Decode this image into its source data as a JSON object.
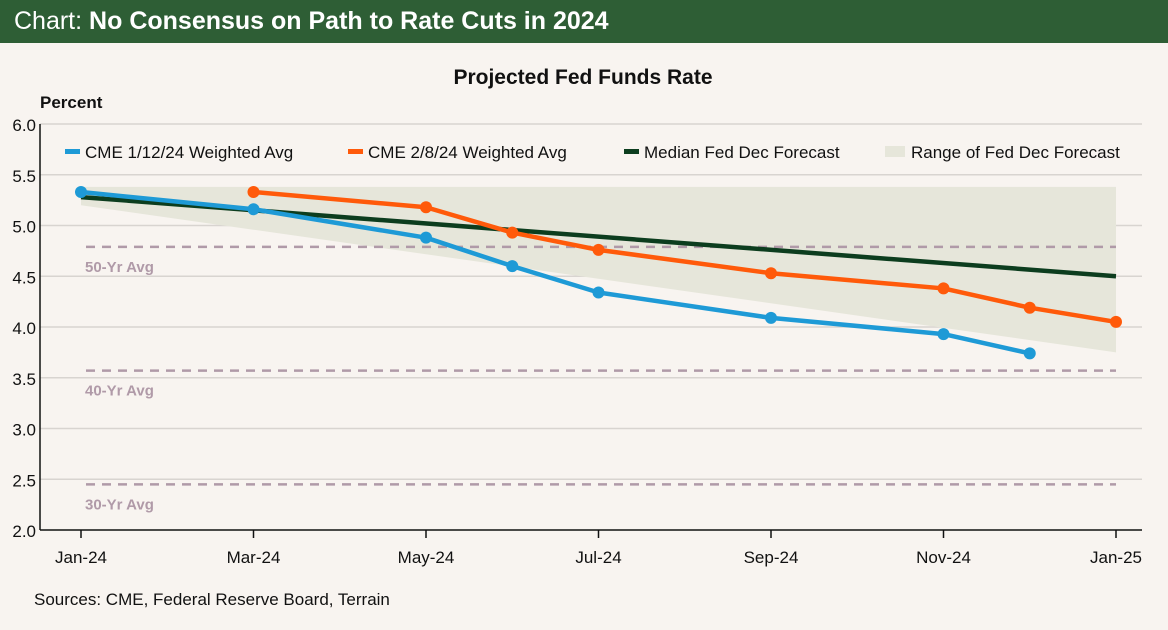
{
  "header": {
    "prefix": "Chart:",
    "title": "No Consensus on Path to Rate Cuts in 2024"
  },
  "source": "Sources: CME, Federal Reserve Board, Terrain",
  "chart_data": {
    "type": "line",
    "title": "Projected Fed Funds Rate",
    "ylabel": "Percent",
    "ylim": [
      2.0,
      6.0
    ],
    "yticks": [
      "2.0",
      "2.5",
      "3.0",
      "3.5",
      "4.0",
      "4.5",
      "5.0",
      "5.5",
      "6.0"
    ],
    "xticks": [
      "Jan-24",
      "Mar-24",
      "May-24",
      "Jul-24",
      "Sep-24",
      "Nov-24",
      "Jan-25"
    ],
    "grid": true,
    "legend": "top",
    "series": [
      {
        "name": "CME 1/12/24 Weighted Avg",
        "color": "#1e9ad6",
        "x": [
          "2024-01",
          "2024-03",
          "2024-05",
          "2024-06",
          "2024-07",
          "2024-09",
          "2024-11",
          "2024-12"
        ],
        "y": [
          5.33,
          5.16,
          4.88,
          4.6,
          4.34,
          4.09,
          3.93,
          3.74
        ]
      },
      {
        "name": "CME 2/8/24 Weighted Avg",
        "color": "#ff5a0a",
        "x": [
          "2024-03",
          "2024-05",
          "2024-06",
          "2024-07",
          "2024-09",
          "2024-11",
          "2024-12",
          "2025-01"
        ],
        "y": [
          5.33,
          5.18,
          4.93,
          4.76,
          4.53,
          4.38,
          4.19,
          4.05
        ]
      },
      {
        "name": "Median Fed Dec Forecast",
        "color": "#0c3d1e",
        "x": [
          "2024-01",
          "2025-01"
        ],
        "y": [
          5.28,
          4.5
        ]
      },
      {
        "name": "Range of Fed Dec Forecast",
        "color": "#e6e6da",
        "type": "area",
        "x": [
          "2024-01",
          "2025-01"
        ],
        "upper": [
          5.38,
          5.38
        ],
        "lower": [
          5.2,
          3.75
        ]
      }
    ],
    "reference_lines": [
      {
        "label": "50-Yr Avg",
        "y": 4.79
      },
      {
        "label": "40-Yr Avg",
        "y": 3.57
      },
      {
        "label": "30-Yr Avg",
        "y": 2.45
      }
    ],
    "reference_color": "#b09aa8"
  }
}
